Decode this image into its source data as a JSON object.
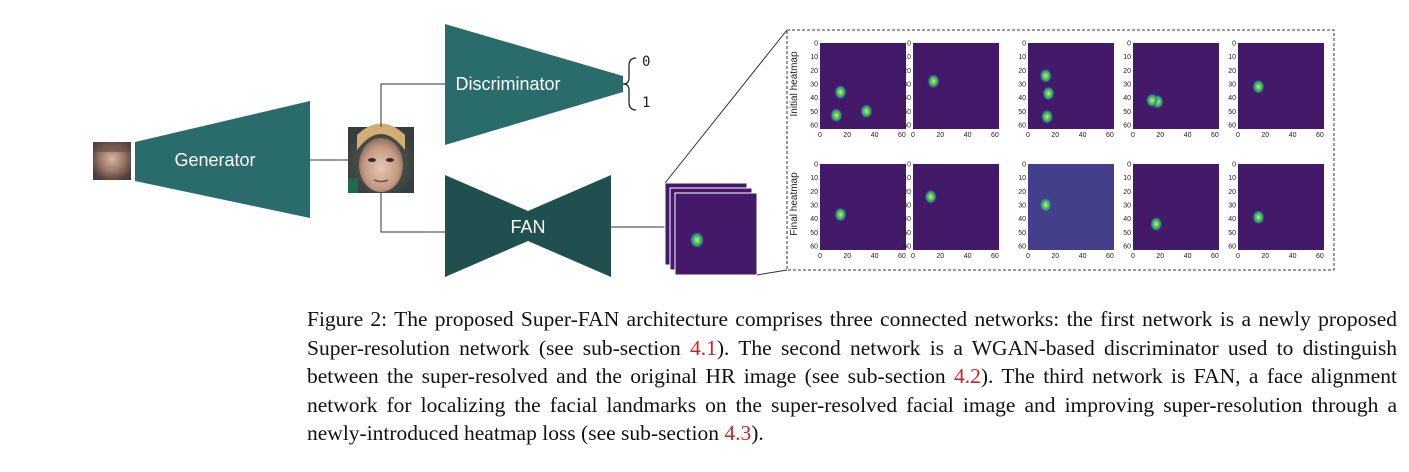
{
  "diagram": {
    "generator_label": "Generator",
    "discriminator_label": "Discriminator",
    "fan_label": "FAN",
    "output_top": "0",
    "output_bottom": "1",
    "row_labels": [
      "Initial heatmap",
      "Final heatmap"
    ],
    "y_ticks": [
      "0",
      "10",
      "20",
      "30",
      "40",
      "50",
      "60"
    ],
    "x_ticks": [
      "0",
      "20",
      "40",
      "60"
    ],
    "colors": {
      "network_fill": "#2a6b6b",
      "network_fill_dark": "#1f4f4f",
      "heatmap_bg": "#45196a",
      "heatmap_hot": "#fde725"
    },
    "heatmaps": {
      "initial": [
        [
          [
            15,
            36
          ],
          [
            12,
            53
          ],
          [
            34,
            50
          ]
        ],
        [
          [
            15,
            28
          ]
        ],
        [
          [
            13,
            24
          ],
          [
            15,
            37
          ],
          [
            14,
            54
          ]
        ],
        [
          [
            18,
            43
          ],
          [
            14,
            42
          ]
        ],
        [
          [
            15,
            32
          ]
        ]
      ],
      "final": [
        [
          [
            15,
            37
          ]
        ],
        [
          [
            13,
            24
          ]
        ],
        [
          [
            13,
            30
          ]
        ],
        [
          [
            17,
            44
          ]
        ],
        [
          [
            15,
            39
          ]
        ]
      ]
    }
  },
  "caption": {
    "p1": "Figure 2: The proposed Super-FAN architecture comprises three connected networks: the first network is a newly proposed Super-resolution network (see sub-section ",
    "ref1": "4.1",
    "p2": "). The second network is a WGAN-based discriminator used to distinguish between the super-resolved and the original HR image (see sub-section ",
    "ref2": "4.2",
    "p3": "). The third network is FAN, a face alignment network for localizing the facial landmarks on the super-resolved facial image and improving super-resolution through a newly-introduced heatmap loss (see sub-section ",
    "ref3": "4.3",
    "p4": ")."
  }
}
